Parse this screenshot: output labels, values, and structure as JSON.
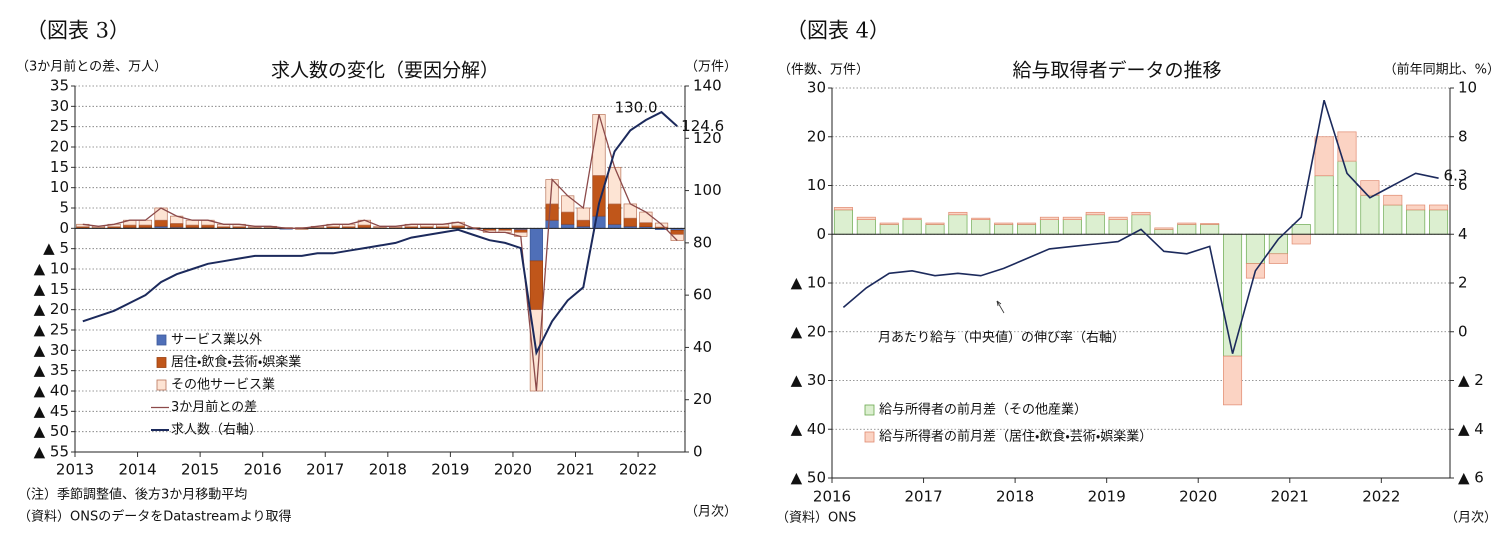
{
  "chart_data": [
    {
      "type": "bar",
      "figure_label": "（図表 3）",
      "title": "求人数の変化（要因分解）",
      "y_label": "（3か月前との差、万人）",
      "y2_label": "（万件）",
      "x_unit": "（月次）",
      "notes": [
        "（注）季節調整値、後方3か月移動平均",
        "（資料）ONSのデータをDatastreamより取得"
      ],
      "x": [
        2013.0,
        2013.25,
        2013.5,
        2013.75,
        2014.0,
        2014.25,
        2014.5,
        2014.75,
        2015.0,
        2015.25,
        2015.5,
        2015.75,
        2016.0,
        2016.25,
        2016.5,
        2016.75,
        2017.0,
        2017.25,
        2017.5,
        2017.75,
        2018.0,
        2018.25,
        2018.5,
        2018.75,
        2019.0,
        2019.25,
        2019.5,
        2019.75,
        2020.0,
        2020.25,
        2020.5,
        2020.75,
        2021.0,
        2021.25,
        2021.5,
        2021.75,
        2022.0,
        2022.25,
        2022.5
      ],
      "xlim": [
        2013,
        2022.75
      ],
      "xticks": [
        2013,
        2014,
        2015,
        2016,
        2017,
        2018,
        2019,
        2020,
        2021,
        2022
      ],
      "ylim": [
        -55,
        35
      ],
      "yticks": [
        35,
        30,
        25,
        20,
        15,
        10,
        5,
        0,
        {
          "value": -5,
          "label": "▲ 5"
        },
        {
          "value": -10,
          "label": "▲ 10"
        },
        {
          "value": -15,
          "label": "▲ 15"
        },
        {
          "value": -20,
          "label": "▲ 20"
        },
        {
          "value": -25,
          "label": "▲ 25"
        },
        {
          "value": -30,
          "label": "▲ 30"
        },
        {
          "value": -35,
          "label": "▲ 35"
        },
        {
          "value": -40,
          "label": "▲ 40"
        },
        {
          "value": -45,
          "label": "▲ 45"
        },
        {
          "value": -50,
          "label": "▲ 50"
        },
        {
          "value": -55,
          "label": "▲ 55"
        }
      ],
      "y2lim": [
        0,
        140
      ],
      "y2ticks": [
        0,
        20,
        40,
        60,
        80,
        100,
        120,
        140
      ],
      "grid": true,
      "series": [
        {
          "name": "サービス業以外",
          "kind": "bar",
          "color": "#4f6fb8",
          "edge": "#3c5a9a",
          "values": [
            0.1,
            0.1,
            0.1,
            0.2,
            0.2,
            0.5,
            0.3,
            0.2,
            0.2,
            0.1,
            0.1,
            0,
            0,
            -0.2,
            -0.1,
            0,
            0.1,
            0.1,
            0.2,
            0,
            0,
            0.1,
            0.1,
            0.1,
            0.2,
            -0.2,
            -0.2,
            -0.2,
            -0.4,
            -8,
            2,
            1,
            0.5,
            3,
            1,
            0.5,
            0.4,
            -0.3,
            -0.5
          ]
        },
        {
          "name": "居住・飲食・芸術・娯楽業",
          "kind": "bar",
          "color": "#c0561a",
          "edge": "#9a4010",
          "values": [
            0.3,
            0.1,
            0.3,
            0.6,
            0.6,
            1.5,
            0.9,
            0.6,
            0.6,
            0.3,
            0.3,
            0.2,
            0.2,
            0,
            -0.1,
            0.2,
            0.3,
            0.3,
            0.6,
            0.2,
            0.2,
            0.3,
            0.3,
            0.3,
            0.4,
            0,
            -0.3,
            -0.3,
            -0.6,
            -12,
            4,
            3,
            1.5,
            10,
            5,
            2,
            1,
            0.3,
            -1
          ]
        },
        {
          "name": "その他サービス業",
          "kind": "bar",
          "color": "#fde4d4",
          "edge": "#b9745a",
          "values": [
            0.6,
            0.3,
            0.6,
            1.2,
            1.2,
            3,
            1.8,
            1.2,
            1.2,
            0.6,
            0.6,
            0.3,
            0.3,
            0.2,
            0.2,
            0.3,
            0.6,
            0.6,
            1.2,
            0.3,
            0.3,
            0.6,
            0.6,
            0.6,
            0.9,
            0.2,
            -0.5,
            -0.5,
            -1,
            -20,
            6,
            4,
            3,
            15,
            9,
            3.5,
            2.6,
            1,
            -1.5
          ]
        },
        {
          "name": "3か月前との差",
          "kind": "line",
          "color": "#8c4a4a",
          "width": 1.3,
          "values": [
            1,
            0.5,
            1,
            2,
            2,
            5,
            3,
            2,
            2,
            1,
            1,
            0.5,
            0.5,
            0,
            0,
            0.5,
            1,
            1,
            2,
            0.5,
            0.5,
            1,
            1,
            1,
            1.5,
            0,
            -1,
            -1,
            -2,
            -40,
            12,
            8,
            5,
            28,
            15,
            6,
            4,
            1,
            -3
          ]
        },
        {
          "name": "求人数（右軸）",
          "kind": "line",
          "axis": "y2",
          "color": "#1c2a5c",
          "width": 2,
          "values": [
            50,
            52,
            54,
            57,
            60,
            65,
            68,
            70,
            72,
            73,
            74,
            75,
            75,
            75,
            75,
            76,
            76,
            77,
            78,
            79,
            80,
            82,
            83,
            84,
            85,
            83,
            81,
            80,
            78,
            38,
            50,
            58,
            63,
            95,
            115,
            123,
            127,
            130.0,
            124.6
          ]
        }
      ],
      "annotations": [
        {
          "text": "130.0",
          "x": 2022.25,
          "y": 130.0,
          "axis": "y2"
        },
        {
          "text": "124.6",
          "x": 2022.5,
          "y": 124.6,
          "axis": "y2"
        }
      ]
    },
    {
      "type": "bar",
      "figure_label": "（図表 4）",
      "title": "給与取得者データの推移",
      "y_label": "（件数、万件）",
      "y2_label": "（前年同期比、%）",
      "x_unit": "（月次）",
      "notes": [
        "（資料）ONS"
      ],
      "x": [
        2016.0,
        2016.25,
        2016.5,
        2016.75,
        2017.0,
        2017.25,
        2017.5,
        2017.75,
        2018.0,
        2018.25,
        2018.5,
        2018.75,
        2019.0,
        2019.25,
        2019.5,
        2019.75,
        2020.0,
        2020.25,
        2020.5,
        2020.75,
        2021.0,
        2021.25,
        2021.5,
        2021.75,
        2022.0,
        2022.25,
        2022.5
      ],
      "xlim": [
        2016,
        2022.75
      ],
      "xticks": [
        2016,
        2017,
        2018,
        2019,
        2020,
        2021,
        2022
      ],
      "ylim": [
        -50,
        30
      ],
      "yticks": [
        30,
        20,
        10,
        0,
        {
          "value": -10,
          "label": "▲ 10"
        },
        {
          "value": -20,
          "label": "▲ 20"
        },
        {
          "value": -30,
          "label": "▲ 30"
        },
        {
          "value": -40,
          "label": "▲ 40"
        },
        {
          "value": -50,
          "label": "▲ 50"
        }
      ],
      "y2lim": [
        -6,
        10
      ],
      "y2ticks": [
        10,
        8,
        6,
        4,
        2,
        0,
        {
          "value": -2,
          "label": "▲ 2"
        },
        {
          "value": -4,
          "label": "▲ 4"
        },
        {
          "value": -6,
          "label": "▲ 6"
        }
      ],
      "grid": true,
      "series": [
        {
          "name": "給与所得者の前月差（その他産業）",
          "kind": "bar",
          "color": "#dcefd0",
          "edge": "#6aa84f",
          "values": [
            5,
            3,
            2,
            3,
            2,
            4,
            3,
            2,
            2,
            3,
            3,
            4,
            3,
            4,
            1,
            2,
            2,
            -25,
            -6,
            -4,
            2,
            12,
            15,
            8,
            6,
            5,
            5
          ]
        },
        {
          "name": "給与所得者の前月差（居住・飲食・芸術・娯楽業）",
          "kind": "bar",
          "color": "#fbd3c3",
          "edge": "#e08a70",
          "values": [
            0.5,
            0.5,
            0.3,
            0.3,
            0.3,
            0.5,
            0.3,
            0.3,
            0.3,
            0.5,
            0.5,
            0.5,
            0.5,
            0.5,
            0.3,
            0.3,
            0.2,
            -10,
            -3,
            -2,
            -2,
            8,
            6,
            3,
            2,
            1,
            1
          ]
        },
        {
          "name": "月あたり給与（中央値）の伸び率（右軸）",
          "kind": "line",
          "axis": "y2",
          "color": "#1c2a5c",
          "width": 1.6,
          "in_legend": false,
          "values": [
            1,
            1.8,
            2.4,
            2.5,
            2.3,
            2.4,
            2.3,
            2.6,
            3.0,
            3.4,
            3.5,
            3.6,
            3.7,
            4.2,
            3.3,
            3.2,
            3.5,
            -0.9,
            2.5,
            3.8,
            4.7,
            9.5,
            6.5,
            5.5,
            6.0,
            6.5,
            6.3
          ]
        }
      ],
      "annotations": [
        {
          "text": "6.3",
          "x": 2022.5,
          "y": 6.3,
          "axis": "y2"
        }
      ]
    }
  ]
}
